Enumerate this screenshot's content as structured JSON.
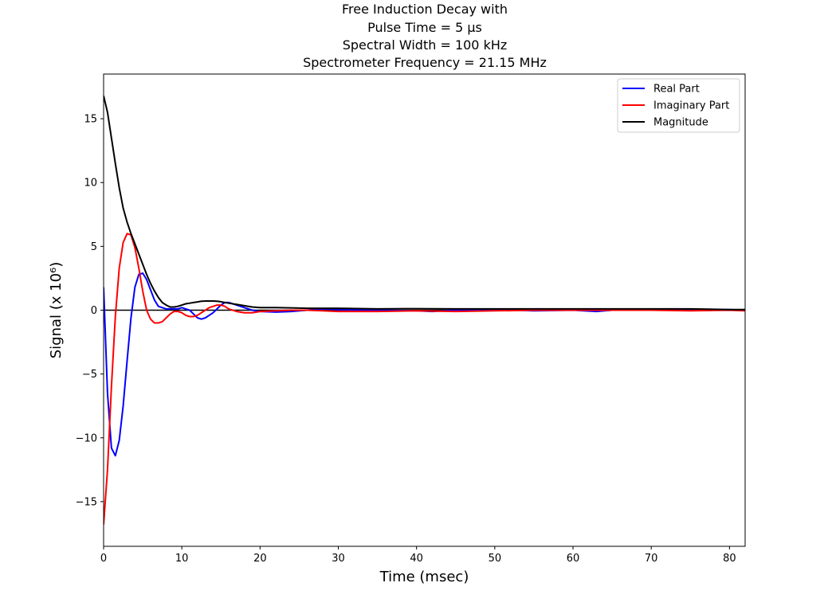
{
  "chart_data": {
    "type": "line",
    "title_lines": [
      "Free Induction Decay with",
      "Pulse Time = 5 μs",
      "Spectral Width = 100 kHz",
      "Spectrometer Frequency = 21.15 MHz"
    ],
    "xlabel": "Time (msec)",
    "ylabel": "Signal (x 10⁶)",
    "xlim": [
      0,
      82
    ],
    "ylim": [
      -18.5,
      18.5
    ],
    "xticks": [
      0,
      10,
      20,
      30,
      40,
      50,
      60,
      70,
      80
    ],
    "yticks": [
      -15,
      -10,
      -5,
      0,
      5,
      10,
      15
    ],
    "ytick_labels": [
      "−15",
      "−10",
      "−5",
      "0",
      "5",
      "10",
      "15"
    ],
    "grid": false,
    "legend_position": "top-right",
    "zero_line": true,
    "colors": {
      "real": "#0000ff",
      "imaginary": "#ff0000",
      "magnitude": "#000000",
      "zero_line": "#000000",
      "axes": "#000000",
      "background": "#ffffff"
    },
    "series": [
      {
        "name": "Real Part",
        "color": "#0000ff",
        "x": [
          0,
          0.5,
          1,
          1.5,
          2,
          2.5,
          3,
          3.5,
          4,
          4.5,
          5,
          5.5,
          6,
          6.5,
          7,
          7.5,
          8,
          8.5,
          9,
          9.5,
          10,
          10.5,
          11,
          11.5,
          12,
          12.5,
          13,
          13.5,
          14,
          14.5,
          15,
          15.5,
          16,
          17,
          18,
          19,
          20,
          22,
          24,
          26,
          28,
          30,
          35,
          40,
          42,
          45,
          50,
          55,
          60,
          63,
          65,
          70,
          75,
          80,
          82
        ],
        "y": [
          1.8,
          -6.5,
          -10.8,
          -11.4,
          -10.2,
          -7.5,
          -4.0,
          -0.6,
          1.8,
          2.8,
          2.9,
          2.4,
          1.6,
          0.8,
          0.3,
          0.2,
          0.1,
          0.1,
          0.1,
          0.1,
          0.2,
          0.1,
          0.0,
          -0.3,
          -0.6,
          -0.7,
          -0.6,
          -0.4,
          -0.2,
          0.1,
          0.4,
          0.6,
          0.6,
          0.4,
          0.2,
          0.0,
          -0.1,
          -0.15,
          -0.1,
          0.0,
          0.1,
          0.05,
          0.0,
          -0.05,
          -0.1,
          0.0,
          0.05,
          -0.05,
          0.0,
          -0.1,
          0.0,
          0.05,
          0.0,
          0.05,
          0.0
        ]
      },
      {
        "name": "Imaginary Part",
        "color": "#ff0000",
        "x": [
          0,
          0.5,
          1,
          1.5,
          2,
          2.5,
          3,
          3.5,
          4,
          4.5,
          5,
          5.5,
          6,
          6.5,
          7,
          7.5,
          8,
          8.5,
          9,
          9.5,
          10,
          10.5,
          11,
          11.5,
          12,
          12.5,
          13,
          13.5,
          14,
          14.5,
          15,
          15.5,
          16,
          17,
          18,
          19,
          20,
          22,
          24,
          26,
          28,
          30,
          35,
          40,
          45,
          50,
          55,
          60,
          65,
          70,
          75,
          80,
          82
        ],
        "y": [
          -16.8,
          -12.5,
          -6.0,
          -0.5,
          3.3,
          5.3,
          6.0,
          5.9,
          4.9,
          3.3,
          1.5,
          0.0,
          -0.7,
          -1.0,
          -1.0,
          -0.9,
          -0.6,
          -0.3,
          -0.1,
          -0.1,
          -0.2,
          -0.4,
          -0.5,
          -0.5,
          -0.4,
          -0.2,
          0.0,
          0.2,
          0.3,
          0.4,
          0.4,
          0.3,
          0.1,
          -0.1,
          -0.2,
          -0.2,
          -0.1,
          -0.05,
          0.0,
          0.0,
          -0.05,
          -0.1,
          -0.1,
          -0.05,
          -0.1,
          -0.05,
          0.0,
          0.0,
          0.0,
          0.0,
          -0.05,
          0.0,
          -0.05
        ]
      },
      {
        "name": "Magnitude",
        "color": "#000000",
        "x": [
          0,
          0.5,
          1,
          1.5,
          2,
          2.5,
          3,
          3.5,
          4,
          4.5,
          5,
          5.5,
          6,
          6.5,
          7,
          7.5,
          8,
          8.5,
          9,
          9.5,
          10,
          10.5,
          11,
          11.5,
          12,
          12.5,
          13,
          13.5,
          14,
          14.5,
          15,
          15.5,
          16,
          17,
          18,
          19,
          20,
          22,
          24,
          26,
          28,
          30,
          35,
          40,
          45,
          50,
          55,
          60,
          65,
          70,
          75,
          80,
          82
        ],
        "y": [
          16.8,
          15.5,
          13.5,
          11.5,
          9.6,
          8.0,
          6.9,
          6.0,
          5.2,
          4.4,
          3.6,
          2.8,
          2.1,
          1.5,
          1.0,
          0.6,
          0.4,
          0.25,
          0.25,
          0.3,
          0.4,
          0.5,
          0.55,
          0.6,
          0.65,
          0.7,
          0.72,
          0.72,
          0.72,
          0.7,
          0.66,
          0.6,
          0.55,
          0.45,
          0.35,
          0.25,
          0.2,
          0.2,
          0.18,
          0.15,
          0.15,
          0.15,
          0.1,
          0.12,
          0.1,
          0.1,
          0.1,
          0.1,
          0.1,
          0.1,
          0.1,
          0.05,
          0.05
        ]
      }
    ]
  }
}
